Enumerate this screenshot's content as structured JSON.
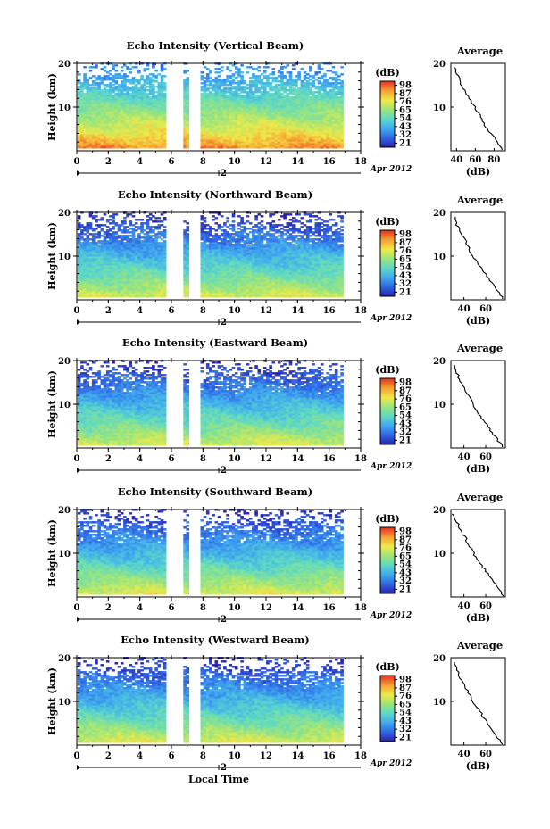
{
  "chart_data": [
    {
      "type": "heatmap",
      "title": "Echo Intensity (Vertical Beam)",
      "ylabel": "Height (km)",
      "ylim": [
        0,
        20
      ],
      "xlim": [
        0,
        18
      ],
      "x_ticks": [
        "0",
        "2",
        "4",
        "6",
        "8",
        "10",
        "12",
        "14",
        "16",
        "18"
      ],
      "y_ticks": [
        "10",
        "20"
      ],
      "date_marker": "2",
      "date_label": "Apr 2012",
      "data_gaps_hours": [
        [
          5.5,
          6.6
        ],
        [
          7.0,
          7.7
        ]
      ],
      "colorbar": {
        "label": "(dB)",
        "ticks": [
          "21",
          "32",
          "43",
          "54",
          "65",
          "76",
          "87",
          "98"
        ]
      },
      "surface_db": 91,
      "top_db": 35,
      "average_profile": {
        "title": "Average",
        "xlabel": "(dB)",
        "x_ticks": [
          "40",
          "60",
          "80"
        ],
        "y_ticks": [
          "10",
          "20"
        ],
        "xlim": [
          34,
          92
        ],
        "ylim": [
          0,
          20
        ],
        "db": [
          89,
          87,
          83,
          80,
          75,
          72,
          69,
          67,
          64,
          61,
          58,
          55,
          52,
          49,
          46,
          44,
          42,
          40,
          38,
          45
        ]
      }
    },
    {
      "type": "heatmap",
      "title": "Echo Intensity (Northward Beam)",
      "ylabel": "Height (km)",
      "ylim": [
        0,
        20
      ],
      "xlim": [
        0,
        18
      ],
      "x_ticks": [
        "0",
        "2",
        "4",
        "6",
        "8",
        "10",
        "12",
        "14",
        "16",
        "18"
      ],
      "y_ticks": [
        "10",
        "20"
      ],
      "date_marker": "2",
      "date_label": "Apr 2012",
      "data_gaps_hours": [
        [
          5.5,
          6.6
        ],
        [
          7.0,
          7.7
        ]
      ],
      "colorbar": {
        "label": "(dB)",
        "ticks": [
          "21",
          "32",
          "43",
          "54",
          "65",
          "76",
          "87",
          "98"
        ]
      },
      "surface_db": 76,
      "top_db": 22,
      "average_profile": {
        "title": "Average",
        "xlabel": "(dB)",
        "x_ticks": [
          "40",
          "60"
        ],
        "y_ticks": [
          "10",
          "20"
        ],
        "xlim": [
          28,
          78
        ],
        "ylim": [
          0,
          20
        ],
        "db": [
          76,
          74,
          71,
          68,
          65,
          62,
          59,
          56,
          53,
          50,
          47,
          45,
          43,
          41,
          38,
          36,
          34,
          32,
          31,
          33
        ]
      }
    },
    {
      "type": "heatmap",
      "title": "Echo Intensity (Eastward Beam)",
      "ylabel": "Height (km)",
      "ylim": [
        0,
        20
      ],
      "xlim": [
        0,
        18
      ],
      "x_ticks": [
        "0",
        "2",
        "4",
        "6",
        "8",
        "10",
        "12",
        "14",
        "16",
        "18"
      ],
      "y_ticks": [
        "10",
        "20"
      ],
      "date_marker": "2",
      "date_label": "Apr 2012",
      "data_gaps_hours": [
        [
          5.5,
          6.6
        ],
        [
          7.0,
          7.7
        ]
      ],
      "colorbar": {
        "label": "(dB)",
        "ticks": [
          "21",
          "32",
          "43",
          "54",
          "65",
          "76",
          "87",
          "98"
        ]
      },
      "surface_db": 76,
      "top_db": 22,
      "average_profile": {
        "title": "Average",
        "xlabel": "(dB)",
        "x_ticks": [
          "40",
          "60"
        ],
        "y_ticks": [
          "10",
          "20"
        ],
        "xlim": [
          28,
          78
        ],
        "ylim": [
          0,
          20
        ],
        "db": [
          76,
          73,
          70,
          67,
          64,
          61,
          58,
          55,
          52,
          50,
          47,
          45,
          43,
          40,
          38,
          36,
          34,
          32,
          31,
          33
        ]
      }
    },
    {
      "type": "heatmap",
      "title": "Echo Intensity (Southward Beam)",
      "ylabel": "Height (km)",
      "ylim": [
        0,
        20
      ],
      "xlim": [
        0,
        18
      ],
      "x_ticks": [
        "0",
        "2",
        "4",
        "6",
        "8",
        "10",
        "12",
        "14",
        "16",
        "18"
      ],
      "y_ticks": [
        "10",
        "20"
      ],
      "date_marker": "2",
      "date_label": "Apr 2012",
      "data_gaps_hours": [
        [
          5.5,
          6.6
        ],
        [
          7.0,
          7.7
        ]
      ],
      "colorbar": {
        "label": "(dB)",
        "ticks": [
          "21",
          "32",
          "43",
          "54",
          "65",
          "76",
          "87",
          "98"
        ]
      },
      "surface_db": 77,
      "top_db": 22,
      "average_profile": {
        "title": "Average",
        "xlabel": "(dB)",
        "x_ticks": [
          "40",
          "60"
        ],
        "y_ticks": [
          "10",
          "20"
        ],
        "xlim": [
          28,
          78
        ],
        "ylim": [
          0,
          20
        ],
        "db": [
          77,
          74,
          71,
          68,
          65,
          62,
          59,
          56,
          53,
          50,
          48,
          45,
          43,
          41,
          38,
          36,
          34,
          32,
          30,
          33
        ]
      }
    },
    {
      "type": "heatmap",
      "title": "Echo Intensity (Westward Beam)",
      "ylabel": "Height (km)",
      "ylim": [
        0,
        20
      ],
      "xlim": [
        0,
        18
      ],
      "x_ticks": [
        "0",
        "2",
        "4",
        "6",
        "8",
        "10",
        "12",
        "14",
        "16",
        "18"
      ],
      "y_ticks": [
        "10",
        "20"
      ],
      "date_marker": "2",
      "date_label": "Apr 2012",
      "xlabel": "Local Time",
      "data_gaps_hours": [
        [
          5.5,
          6.6
        ],
        [
          7.0,
          7.7
        ]
      ],
      "colorbar": {
        "label": "(dB)",
        "ticks": [
          "21",
          "32",
          "43",
          "54",
          "65",
          "76",
          "87",
          "98"
        ]
      },
      "surface_db": 76,
      "top_db": 22,
      "average_profile": {
        "title": "Average",
        "xlabel": "(dB)",
        "x_ticks": [
          "40",
          "60"
        ],
        "y_ticks": [
          "10",
          "20"
        ],
        "xlim": [
          28,
          78
        ],
        "ylim": [
          0,
          20
        ],
        "db": [
          76,
          73,
          70,
          67,
          64,
          61,
          58,
          56,
          53,
          50,
          47,
          45,
          43,
          40,
          38,
          36,
          34,
          32,
          31,
          33
        ]
      }
    }
  ],
  "colors": {
    "scale": [
      "#2a1fa8",
      "#2f63e3",
      "#3fa8f0",
      "#5bd8c8",
      "#9ae57c",
      "#eeea48",
      "#f7a232",
      "#e8341f"
    ]
  }
}
